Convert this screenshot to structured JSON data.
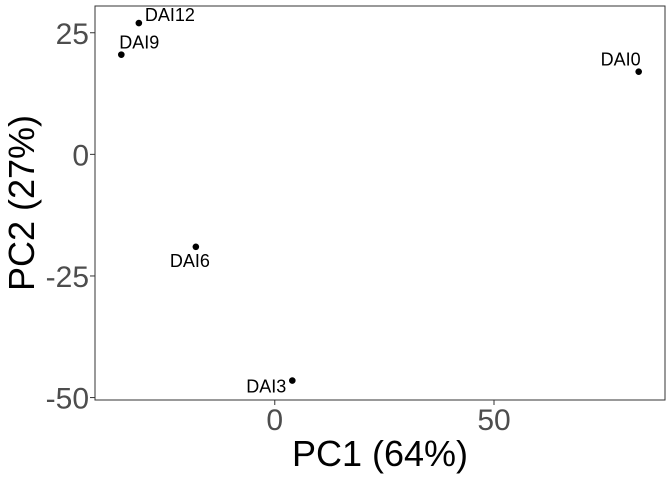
{
  "chart_data": {
    "type": "scatter",
    "title": "",
    "xlabel": "PC1 (64%)",
    "ylabel": "PC2 (27%)",
    "xlim": [
      -41,
      89
    ],
    "ylim": [
      -50.5,
      30.5
    ],
    "xticks": [
      0,
      50
    ],
    "xtick_labels": [
      "0",
      "50"
    ],
    "yticks": [
      25,
      0,
      -25,
      -50
    ],
    "ytick_labels": [
      "25",
      "0",
      "-25",
      "-50"
    ],
    "grid": false,
    "points": [
      {
        "label": "DAI0",
        "x": 83,
        "y": 17
      },
      {
        "label": "DAI3",
        "x": 4,
        "y": -46.5
      },
      {
        "label": "DAI6",
        "x": -18,
        "y": -19
      },
      {
        "label": "DAI9",
        "x": -35,
        "y": 20.5
      },
      {
        "label": "DAI12",
        "x": -31,
        "y": 27
      }
    ],
    "colors": {
      "point": "#000000",
      "axis_text": "#4d4d4d",
      "axis_title": "#000000",
      "panel_border": "#333333"
    }
  }
}
